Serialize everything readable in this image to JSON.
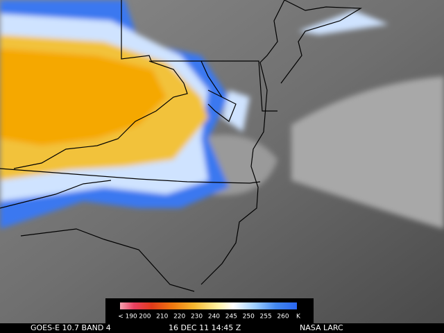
{
  "footer": {
    "satellite": "GOES-E 10.7 BAND 4",
    "time": "16 DEC 11 14:45 Z",
    "source": "NASA LARC"
  },
  "legend": {
    "labels": [
      "< 190",
      "200",
      "210",
      "220",
      "230",
      "240",
      "245",
      "250",
      "255",
      "260"
    ],
    "unit": "K"
  }
}
